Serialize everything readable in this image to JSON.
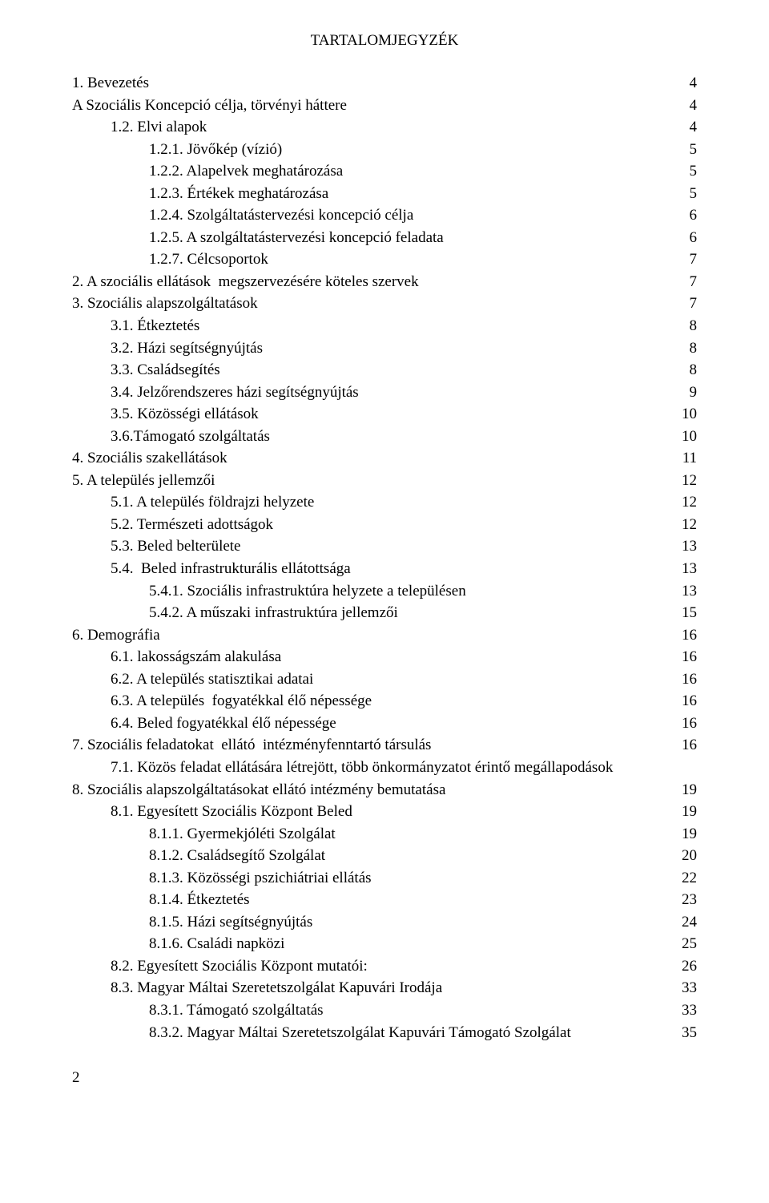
{
  "title": "TARTALOMJEGYZÉK",
  "page_number": "2",
  "entries": [
    {
      "text": "1. Bevezetés",
      "page": "4",
      "indent": 0
    },
    {
      "text": "A Szociális Koncepció célja, törvényi háttere",
      "page": "4",
      "indent": 0
    },
    {
      "text": "1.2. Elvi alapok",
      "page": "4",
      "indent": 1
    },
    {
      "text": "1.2.1. Jövőkép (vízió)",
      "page": "5",
      "indent": 2
    },
    {
      "text": "1.2.2. Alapelvek meghatározása",
      "page": "5",
      "indent": 2
    },
    {
      "text": "1.2.3. Értékek meghatározása",
      "page": "5",
      "indent": 2
    },
    {
      "text": "1.2.4. Szolgáltatástervezési koncepció célja",
      "page": "6",
      "indent": 2
    },
    {
      "text": "1.2.5. A szolgáltatástervezési koncepció feladata",
      "page": "6",
      "indent": 2
    },
    {
      "text": "1.2.7. Célcsoportok",
      "page": "7",
      "indent": 2
    },
    {
      "text": "2. A szociális ellátások  megszervezésére köteles szervek",
      "page": "7",
      "indent": 0
    },
    {
      "text": "3. Szociális alapszolgáltatások",
      "page": "7",
      "indent": 0
    },
    {
      "text": "3.1. Étkeztetés",
      "page": "8",
      "indent": 1
    },
    {
      "text": "3.2. Házi segítségnyújtás",
      "page": "8",
      "indent": 1
    },
    {
      "text": "3.3. Családsegítés",
      "page": "8",
      "indent": 1
    },
    {
      "text": "3.4. Jelzőrendszeres házi segítségnyújtás",
      "page": "9",
      "indent": 1
    },
    {
      "text": "3.5. Közösségi ellátások",
      "page": "10",
      "indent": 1
    },
    {
      "text": "3.6.Támogató szolgáltatás",
      "page": "10",
      "indent": 1
    },
    {
      "text": "4. Szociális szakellátások",
      "page": "11",
      "indent": 0
    },
    {
      "text": "5. A település jellemzői",
      "page": "12",
      "indent": 0
    },
    {
      "text": "5.1. A település földrajzi helyzete",
      "page": "12",
      "indent": 1
    },
    {
      "text": "5.2. Természeti adottságok",
      "page": "12",
      "indent": 1
    },
    {
      "text": "5.3. Beled belterülete",
      "page": "13",
      "indent": 1
    },
    {
      "text": "5.4.  Beled infrastrukturális ellátottsága",
      "page": "13",
      "indent": 1
    },
    {
      "text": "5.4.1. Szociális infrastruktúra helyzete a településen",
      "page": "13",
      "indent": 2
    },
    {
      "text": "5.4.2. A műszaki infrastruktúra jellemzői",
      "page": "15",
      "indent": 2
    },
    {
      "text": "6. Demográfia",
      "page": "16",
      "indent": 0
    },
    {
      "text": "6.1. lakosságszám alakulása",
      "page": "16",
      "indent": 1
    },
    {
      "text": "6.2. A település statisztikai adatai",
      "page": "16",
      "indent": 1
    },
    {
      "text": "6.3. A település  fogyatékkal élő népessége",
      "page": "16",
      "indent": 1
    },
    {
      "text": "6.4. Beled fogyatékkal élő népessége",
      "page": "16",
      "indent": 1
    },
    {
      "text": "7. Szociális feladatokat  ellátó  intézményfenntartó társulás",
      "page": "16",
      "indent": 0
    },
    {
      "text": "7.1. Közös feladat ellátására létrejött, több önkormányzatot érintő megállapodások",
      "page": "",
      "indent": 1
    },
    {
      "text": "8. Szociális alapszolgáltatásokat ellátó intézmény bemutatása",
      "page": "19",
      "indent": 0
    },
    {
      "text": "8.1. Egyesített Szociális Központ Beled",
      "page": "19",
      "indent": 1
    },
    {
      "text": "8.1.1. Gyermekjóléti Szolgálat",
      "page": "19",
      "indent": 2
    },
    {
      "text": "8.1.2. Családsegítő Szolgálat",
      "page": "20",
      "indent": 2
    },
    {
      "text": "8.1.3. Közösségi pszichiátriai ellátás",
      "page": "22",
      "indent": 2
    },
    {
      "text": "8.1.4. Étkeztetés",
      "page": "23",
      "indent": 2
    },
    {
      "text": "8.1.5. Házi segítségnyújtás",
      "page": "24",
      "indent": 2
    },
    {
      "text": "8.1.6. Családi napközi",
      "page": "25",
      "indent": 2
    },
    {
      "text": "8.2. Egyesített Szociális Központ mutatói:",
      "page": "26",
      "indent": 1
    },
    {
      "text": "8.3. Magyar Máltai Szeretetszolgálat Kapuvári Irodája",
      "page": "33",
      "indent": 1
    },
    {
      "text": "8.3.1. Támogató szolgáltatás",
      "page": "33",
      "indent": 2
    },
    {
      "text": "8.3.2. Magyar Máltai Szeretetszolgálat Kapuvári Támogató Szolgálat",
      "page": "35",
      "indent": 2
    }
  ]
}
